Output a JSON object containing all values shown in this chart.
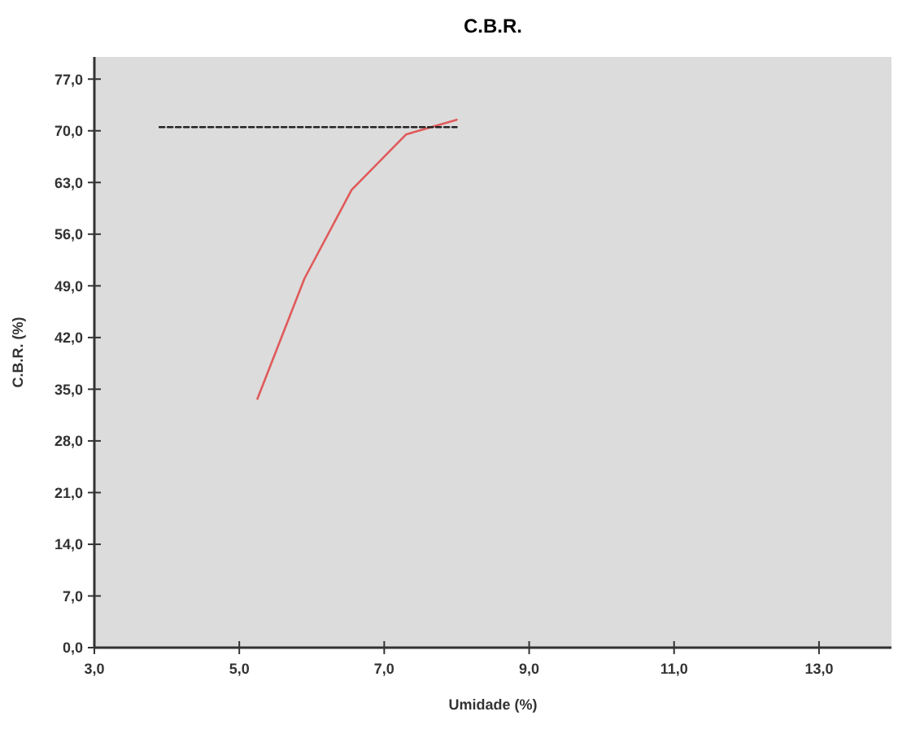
{
  "chart_data": {
    "type": "line",
    "title": "C.B.R.",
    "xlabel": "Umidade (%)",
    "ylabel": "C.B.R. (%)",
    "xlim": [
      3,
      14
    ],
    "xticks": [
      {
        "value": 3,
        "label": "3,0"
      },
      {
        "value": 5,
        "label": "5,0"
      },
      {
        "value": 7,
        "label": "7,0"
      },
      {
        "value": 9,
        "label": "9,0"
      },
      {
        "value": 11,
        "label": "11,0"
      },
      {
        "value": 13,
        "label": "13,0"
      }
    ],
    "ylim": [
      0,
      80
    ],
    "yticks": [
      {
        "value": 0,
        "label": "0,0"
      },
      {
        "value": 7,
        "label": "7,0"
      },
      {
        "value": 14,
        "label": "14,0"
      },
      {
        "value": 21,
        "label": "21,0"
      },
      {
        "value": 28,
        "label": "28,0"
      },
      {
        "value": 35,
        "label": "35,0"
      },
      {
        "value": 42,
        "label": "42,0"
      },
      {
        "value": 49,
        "label": "49,0"
      },
      {
        "value": 56,
        "label": "56,0"
      },
      {
        "value": 63,
        "label": "63,0"
      },
      {
        "value": 70,
        "label": "70,0"
      },
      {
        "value": 77,
        "label": "77,0"
      }
    ],
    "grid": false,
    "marker": "none",
    "series": [
      {
        "color": "#e05a5a",
        "x": [
          5.25,
          5.9,
          6.55,
          7.3,
          8.0
        ],
        "values": [
          33.7,
          50,
          62,
          69.5,
          71.5
        ],
        "line_style": "solid"
      },
      {
        "color": "#222222",
        "x": [
          3.9,
          8.0
        ],
        "values": [
          70.5,
          70.5
        ],
        "line_style": "dashed"
      }
    ]
  }
}
